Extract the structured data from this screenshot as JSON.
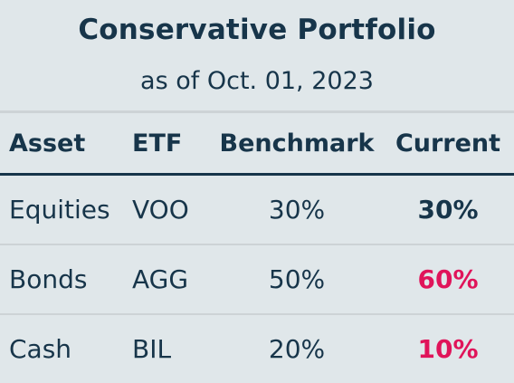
{
  "header": {
    "title": "Conservative Portfolio",
    "subtitle": "as of Oct. 01, 2023"
  },
  "table": {
    "columns": [
      "Asset",
      "ETF",
      "Benchmark",
      "Current"
    ],
    "rows": [
      {
        "asset": "Equities",
        "etf": "VOO",
        "benchmark": "30%",
        "current": "30%",
        "current_status": "on-target"
      },
      {
        "asset": "Bonds",
        "etf": "AGG",
        "benchmark": "50%",
        "current": "60%",
        "current_status": "off-target"
      },
      {
        "asset": "Cash",
        "etf": "BIL",
        "benchmark": "20%",
        "current": "10%",
        "current_status": "off-target"
      }
    ]
  },
  "colors": {
    "background": "#e0e7ea",
    "text": "#17354a",
    "alert": "#e0145a",
    "divider": "#cdd3d6"
  }
}
